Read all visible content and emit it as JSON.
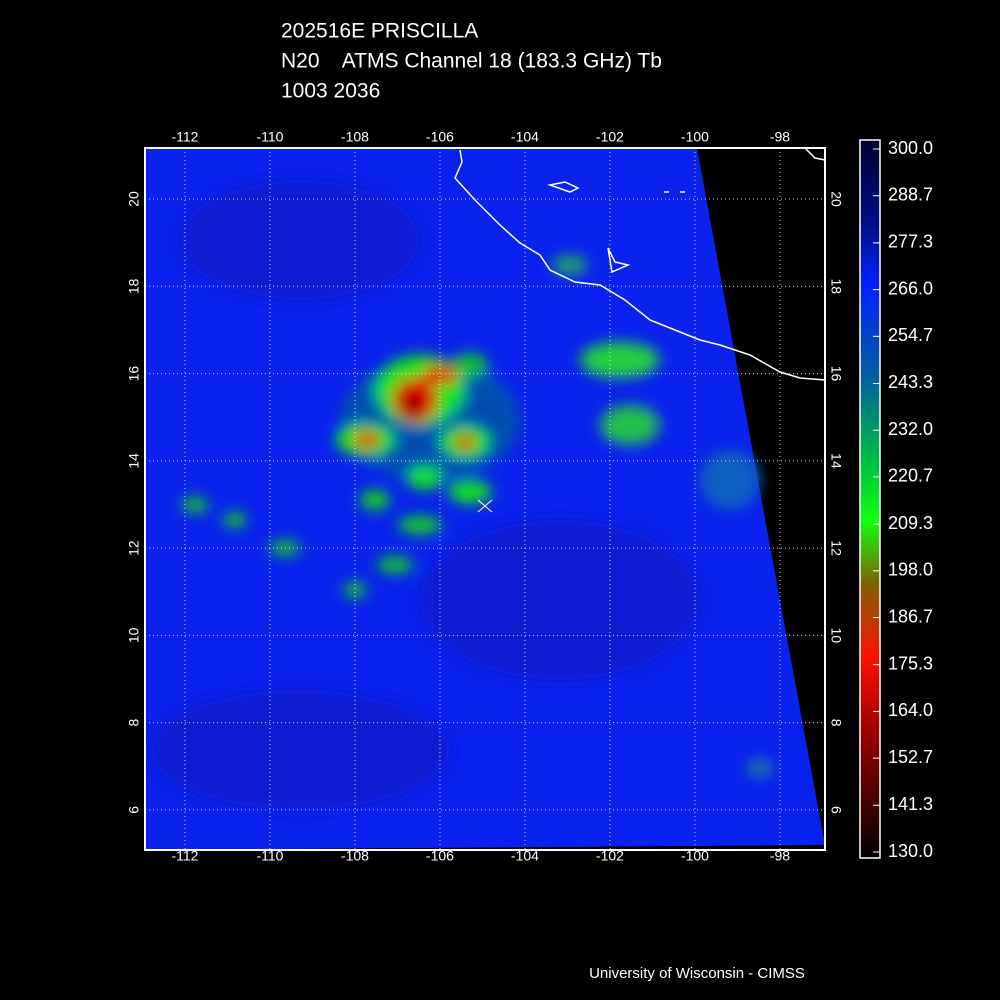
{
  "header": {
    "lines": [
      "202516E PRISCILLA",
      "N20    ATMS Channel 18 (183.3 GHz) Tb",
      "1003 2036"
    ]
  },
  "map": {
    "xlim": [
      -112.94,
      -96.94
    ],
    "ylim": [
      5.08,
      21.17
    ],
    "xticks": [
      -112,
      -110,
      -108,
      -106,
      -104,
      -102,
      -100,
      -98
    ],
    "yticks": [
      6,
      8,
      10,
      12,
      14,
      16,
      18,
      20
    ],
    "grid": true
  },
  "colorbar": {
    "ticks": [
      {
        "value": 300,
        "label": "300.0"
      },
      288.7,
      277.3,
      {
        "value": 266,
        "label": "266.0"
      },
      254.7,
      243.3,
      {
        "value": 232,
        "label": "232.0"
      },
      220.7,
      209.3,
      {
        "value": 198,
        "label": "198.0"
      },
      186.7,
      175.3,
      {
        "value": 164,
        "label": "164.0"
      },
      152.7,
      141.3,
      {
        "value": 130,
        "label": "130.0"
      }
    ]
  },
  "footer": {
    "credit": "University of Wisconsin - CIMSS"
  }
}
